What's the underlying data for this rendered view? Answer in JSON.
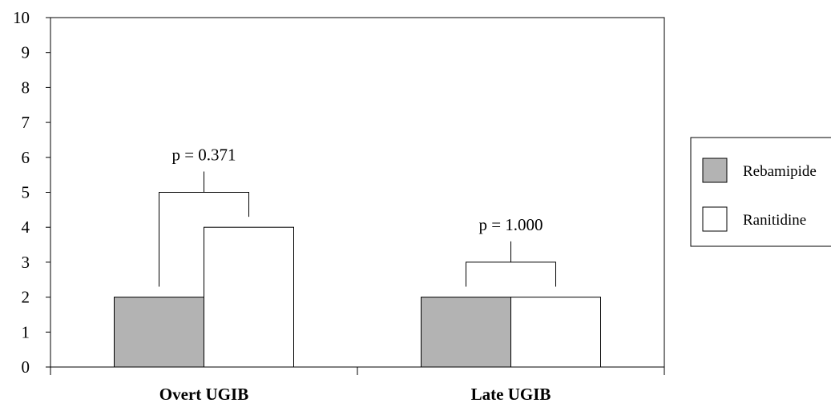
{
  "chart_data": {
    "type": "bar",
    "title": "",
    "xlabel": "",
    "ylabel": "",
    "ylim": [
      0,
      10
    ],
    "yticks": [
      "0",
      "1",
      "2",
      "3",
      "4",
      "5",
      "6",
      "7",
      "8",
      "9",
      "10"
    ],
    "categories": [
      "Overt UGIB",
      "Late UGIB"
    ],
    "series": [
      {
        "name": "Rebamipide",
        "values": [
          2,
          2
        ],
        "color": "#b3b3b3"
      },
      {
        "name": "Ranitidine",
        "values": [
          4,
          2
        ],
        "color": "#ffffff"
      }
    ],
    "annotations": [
      {
        "category": "Overt UGIB",
        "text": "p = 0.371",
        "bracket_level": 5
      },
      {
        "category": "Late UGIB",
        "text": "p = 1.000",
        "bracket_level": 3
      }
    ],
    "legend": {
      "position": "right",
      "entries": [
        "Rebamipide",
        "Ranitidine"
      ]
    },
    "grid": false
  }
}
